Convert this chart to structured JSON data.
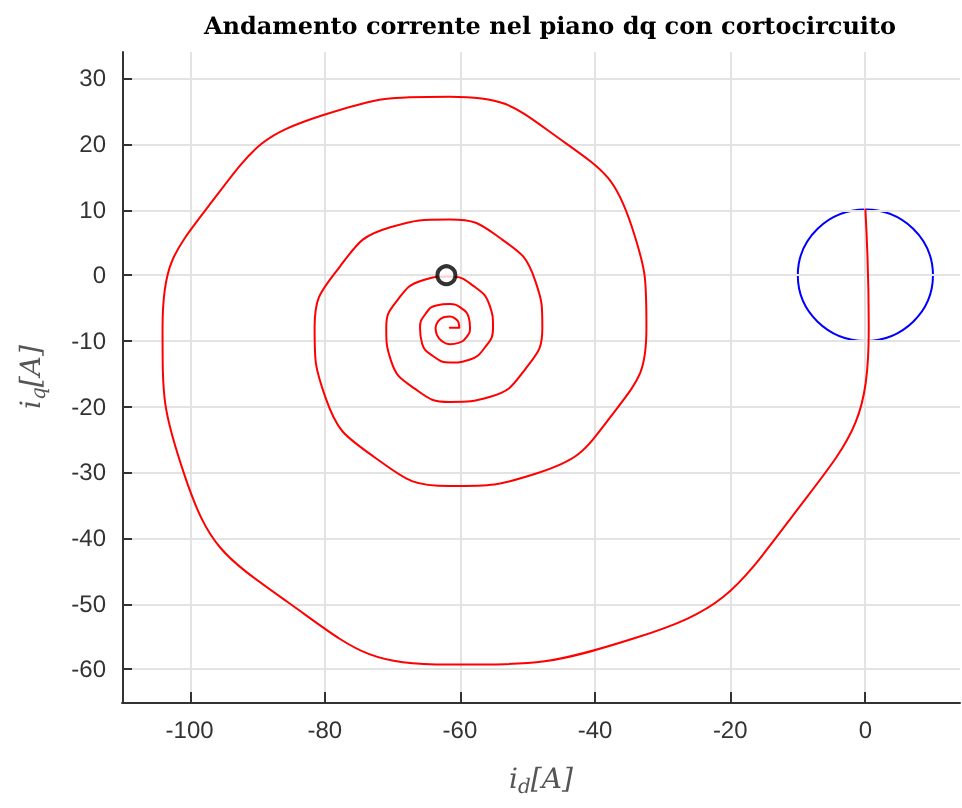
{
  "chart_data": {
    "type": "line",
    "title": "Andamento corrente nel piano dq con cortocircuito",
    "xlabel": "i$_{d}$[A]",
    "ylabel": "i$_{q}$[A]",
    "xlim": [
      -110,
      14
    ],
    "xticks": [
      -100,
      -80,
      -60,
      -40,
      -20,
      0
    ],
    "ylim": [
      -65,
      34
    ],
    "yticks": [
      -60,
      -50,
      -40,
      -30,
      -20,
      -10,
      0,
      10,
      20,
      30
    ],
    "grid": true,
    "marker": "none",
    "line_style": "solid",
    "series": [
      {
        "color": "#ff0000",
        "x": [
          0,
          0.5,
          -11.1,
          -34.2,
          -61.5,
          -85.6,
          -100.7,
          -104.0,
          -96.1,
          -80.2,
          -61.5,
          -45.0,
          -34.6,
          -32.4,
          -37.8,
          -48.7,
          -61.5,
          -72.8,
          -79.9,
          -81.5,
          -77.7,
          -70.3,
          -61.5,
          -53.7,
          -48.9,
          -47.8,
          -50.4,
          -55.5,
          -61.5,
          -66.8,
          -70.2,
          -70.9,
          -69.1,
          -65.6,
          -61.5,
          -57.9,
          -55.6,
          -55.1,
          -56.3,
          -58.7,
          -61.5,
          -64.0,
          -65.6,
          -65.9,
          -65.1,
          -63.5,
          -61.5,
          -59.8,
          -58.7,
          -58.5,
          -59.0,
          -60.2,
          -61.5,
          -62.7,
          -63.4,
          -63.6,
          -63.2,
          -62.4,
          -61.5,
          -60.7,
          -60.2,
          -60.1,
          -61.5
        ],
        "values": [
          10,
          -8.0,
          -37.1,
          -55.3,
          -59.3,
          -49.7,
          -30.6,
          -8.0,
          12.0,
          24.4,
          27.2,
          20.6,
          7.5,
          -8.0,
          -21.7,
          -30.2,
          -32.1,
          -27.6,
          -18.6,
          -8.0,
          1.4,
          7.3,
          8.5,
          5.4,
          -0.7,
          -8.0,
          -14.4,
          -18.5,
          -19.3,
          -17.2,
          -13.0,
          -8.0,
          -3.6,
          -0.8,
          -0.2,
          -1.7,
          -4.6,
          -8.0,
          -11.0,
          -12.9,
          -13.3,
          -12.3,
          -10.4,
          -8.0,
          -5.9,
          -4.6,
          -4.4,
          -5.0,
          -6.4,
          -8.0,
          -9.4,
          -10.3,
          -10.5,
          -10.0,
          -9.1,
          -8.0,
          -7.0,
          -6.4,
          -6.3,
          -6.6,
          -7.2,
          -8.0,
          -8.0
        ]
      },
      {
        "type": "scatter",
        "color": "#000000",
        "marker": "circle",
        "x": [
          -62
        ],
        "values": [
          0
        ]
      }
    ]
  }
}
